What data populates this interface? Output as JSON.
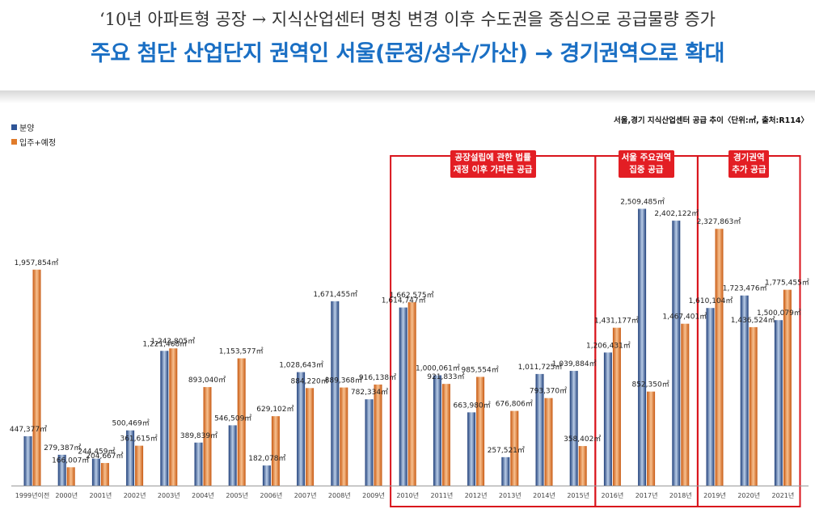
{
  "header": {
    "subtitle": "‘10년 아파트형 공장 → 지식산업센터 명칭 변경 이후 수도권을 중심으로 공급물량 증가",
    "title": "주요 첨단 산업단지 권역인 서울(문정/성수/가산) → 경기권역으로 확대"
  },
  "colors": {
    "sale": "#2f5597",
    "move_in": "#e07b2a",
    "callout": "#e31e24",
    "box": "#d9141c"
  },
  "chart_data": {
    "type": "bar",
    "title": "서울,경기 지식산업센터 공급 추이〈단위:㎡, 출처:R114〉",
    "categories": [
      "1999년이전",
      "2000년",
      "2001년",
      "2002년",
      "2003년",
      "2004년",
      "2005년",
      "2006년",
      "2007년",
      "2008년",
      "2009년",
      "2010년",
      "2011년",
      "2012년",
      "2013년",
      "2014년",
      "2015년",
      "2016년",
      "2017년",
      "2018년",
      "2019년",
      "2020년",
      "2021년"
    ],
    "series": [
      {
        "name": "분양",
        "values": [
          447377,
          279387,
          244459,
          500469,
          1221468,
          389839,
          546509,
          182078,
          1028643,
          1671455,
          782334,
          1614747,
          1000061,
          663980,
          257521,
          1011725,
          1039884,
          1206431,
          2509485,
          2402122,
          1610104,
          1723476,
          1500079
        ]
      },
      {
        "name": "입주+예정",
        "values": [
          1957854,
          166007,
          204667,
          361615,
          1243805,
          893040,
          1153577,
          629102,
          884220,
          889368,
          916138,
          1662575,
          921833,
          985554,
          676806,
          793370,
          358402,
          1431177,
          852350,
          1467401,
          2327863,
          1436524,
          1775455
        ]
      }
    ],
    "labels": {
      "sale": [
        "447,377㎡",
        "279,387㎡",
        "244,459㎡",
        "500,469㎡",
        "1,221,468㎡",
        "389,839㎡",
        "546,509㎡",
        "182,078㎡",
        "1,028,643㎡",
        "1,671,455㎡",
        "782,334㎡",
        "1,614,747㎡",
        "1,000,061㎡",
        "663,980㎡",
        "257,521㎡",
        "1,011,725㎡",
        "1,039,884㎡",
        "1,206,431㎡",
        "2,509,485㎡",
        "2,402,122㎡",
        "1,610,104㎡",
        "1,723,476㎡",
        "1,500,079㎡"
      ],
      "move_in": [
        "1,957,854㎡",
        "166,007㎡",
        "204,667㎡",
        "361,615㎡",
        "1,243,805㎡",
        "893,040㎡",
        "1,153,577㎡",
        "629,102㎡",
        "884,220㎡",
        "889,368㎡",
        "916,138㎡",
        "1,662,575㎡",
        "921,833㎡",
        "985,554㎡",
        "676,806㎡",
        "793,370㎡",
        "358,402㎡",
        "1,431,177㎡",
        "852,350㎡",
        "1,467,401㎡",
        "2,327,863㎡",
        "1,436,524㎡",
        "1,775,455㎡"
      ]
    },
    "legend_position": "top-left",
    "grid": false,
    "annotations": [
      {
        "text": "공장설립에 관한 법률\n재정 이후 가파른 공급",
        "from": "2010년",
        "to": "2015년"
      },
      {
        "text": "서울 주요권역\n집중 공급",
        "from": "2016년",
        "to": "2018년"
      },
      {
        "text": "경기권역\n추가 공급",
        "from": "2019년",
        "to": "2021년"
      }
    ]
  }
}
